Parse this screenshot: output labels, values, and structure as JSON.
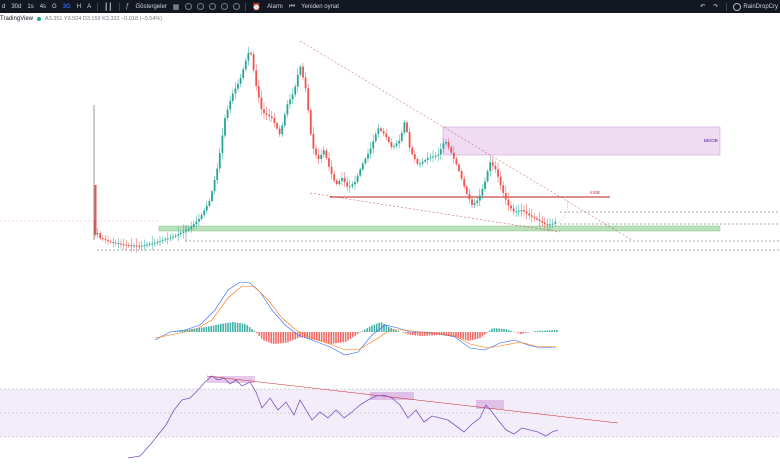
{
  "toolbar": {
    "timeframes": [
      "d",
      "30d",
      "1s",
      "4s",
      "G",
      "3G",
      "H",
      "A"
    ],
    "active_timeframe": "3G",
    "indicators_label": "Göstergeler",
    "alarm_label": "Alarm",
    "replay_label": "Yeniden oynat",
    "username": "RainDropCry"
  },
  "legend": {
    "brand": "TradingView",
    "ohlc": "A3.351  Y3.504  D3.159  K3.332  −0.018 (−0.54%)"
  },
  "annotations": {
    "zone_label": "BE/OB",
    "level_label": "mSB"
  },
  "colors": {
    "up": "#26a69a",
    "down": "#ef5350",
    "zone": "#e1bee7",
    "support": "#a5d6a7",
    "level_line": "#b71c1c",
    "rsi": "#7e57c2",
    "macd": "#2962ff",
    "signal": "#ff6d00"
  }
}
